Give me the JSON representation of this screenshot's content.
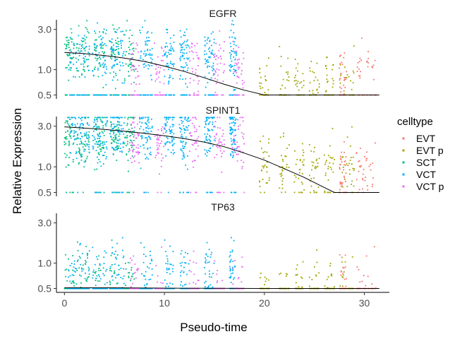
{
  "chart_data": {
    "type": "scatter",
    "xlabel": "Pseudo-time",
    "ylabel": "Relative Expression",
    "xlim": [
      -0.8,
      32.5
    ],
    "y_scale": "log10",
    "ylim": [
      0.45,
      3.9
    ],
    "x_ticks": [
      "0",
      "10",
      "20",
      "30"
    ],
    "y_ticks": [
      "0.5",
      "1.0",
      "3.0"
    ],
    "grid": false,
    "legend": {
      "title": "celltype",
      "position": "right",
      "entries": [
        {
          "name": "EVT",
          "color": "#F8766D"
        },
        {
          "name": "EVT p",
          "color": "#A3A500"
        },
        {
          "name": "SCT",
          "color": "#00BF7D"
        },
        {
          "name": "VCT",
          "color": "#00B0F6"
        },
        {
          "name": "VCT p",
          "color": "#E76BF3"
        }
      ]
    },
    "celltype_pseudotime_ranges": {
      "EVT": [
        27.5,
        31.5
      ],
      "EVT p": [
        19.5,
        29
      ],
      "SCT": [
        0,
        7
      ],
      "VCT": [
        0,
        17
      ],
      "VCT p": [
        6,
        18
      ]
    },
    "panels": [
      {
        "title": "EGFR",
        "trend": {
          "x": [
            0,
            2,
            4,
            6,
            8,
            10,
            12,
            14,
            16,
            18,
            20,
            22,
            24,
            26,
            28,
            30,
            31.5
          ],
          "y": [
            1.6,
            1.55,
            1.47,
            1.37,
            1.25,
            1.1,
            0.95,
            0.8,
            0.67,
            0.57,
            0.5,
            0.5,
            0.5,
            0.5,
            0.5,
            0.5,
            0.5
          ]
        },
        "levels": {
          "SCT": 1.6,
          "VCT": 1.5,
          "VCT p": 1.15,
          "EVT p": 0.7,
          "EVT": 1.0
        },
        "floor_fraction": 0.28
      },
      {
        "title": "SPINT1",
        "trend": {
          "x": [
            0,
            2,
            4,
            6,
            8,
            10,
            12,
            14,
            16,
            18,
            20,
            22,
            24,
            26,
            27,
            28,
            30,
            31.5
          ],
          "y": [
            2.95,
            2.85,
            2.75,
            2.62,
            2.48,
            2.32,
            2.15,
            1.95,
            1.72,
            1.45,
            1.2,
            0.95,
            0.75,
            0.57,
            0.5,
            0.5,
            0.5,
            0.5
          ]
        },
        "levels": {
          "SCT": 2.3,
          "VCT": 2.6,
          "VCT p": 2.1,
          "EVT p": 0.95,
          "EVT": 0.85
        },
        "floor_fraction": 0.06
      },
      {
        "title": "TP63",
        "trend": {
          "x": [
            0,
            5,
            10,
            15,
            20,
            25,
            30,
            31.5
          ],
          "y": [
            0.51,
            0.51,
            0.505,
            0.502,
            0.5,
            0.5,
            0.5,
            0.5
          ]
        },
        "levels": {
          "SCT": 0.72,
          "VCT": 0.85,
          "VCT p": 0.62,
          "EVT p": 0.56,
          "EVT": 0.6
        },
        "floor_fraction": 0.55
      }
    ]
  }
}
